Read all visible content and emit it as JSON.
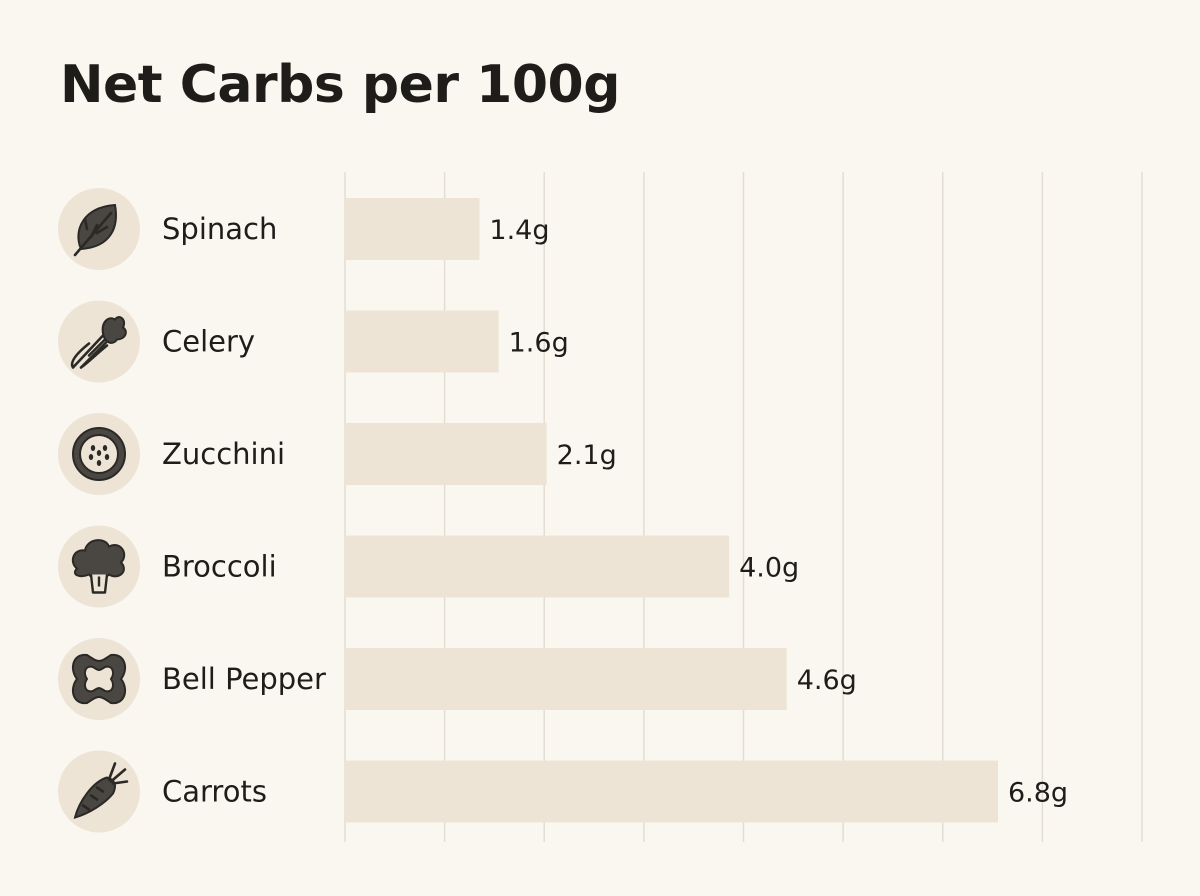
{
  "chart_data": {
    "type": "bar",
    "orientation": "horizontal",
    "title": "Net Carbs per 100g",
    "categories": [
      "Spinach",
      "Celery",
      "Zucchini",
      "Broccoli",
      "Bell Pepper",
      "Carrots"
    ],
    "values": [
      1.4,
      1.6,
      2.1,
      4.0,
      4.6,
      6.8
    ],
    "value_labels": [
      "1.4g",
      "1.6g",
      "2.1g",
      "4.0g",
      "4.6g",
      "6.8g"
    ],
    "unit": "g",
    "icons": [
      "spinach-leaf-icon",
      "celery-icon",
      "zucchini-slice-icon",
      "broccoli-icon",
      "bell-pepper-icon",
      "carrot-icon"
    ],
    "xlim": [
      0,
      8.3
    ],
    "grid": "vertical",
    "colors": {
      "background": "#faf7f0",
      "bar": "#ede4d6",
      "icon_circle": "#ede4d6",
      "grid": "#e3ddd3",
      "text": "#1f1d1a"
    }
  }
}
